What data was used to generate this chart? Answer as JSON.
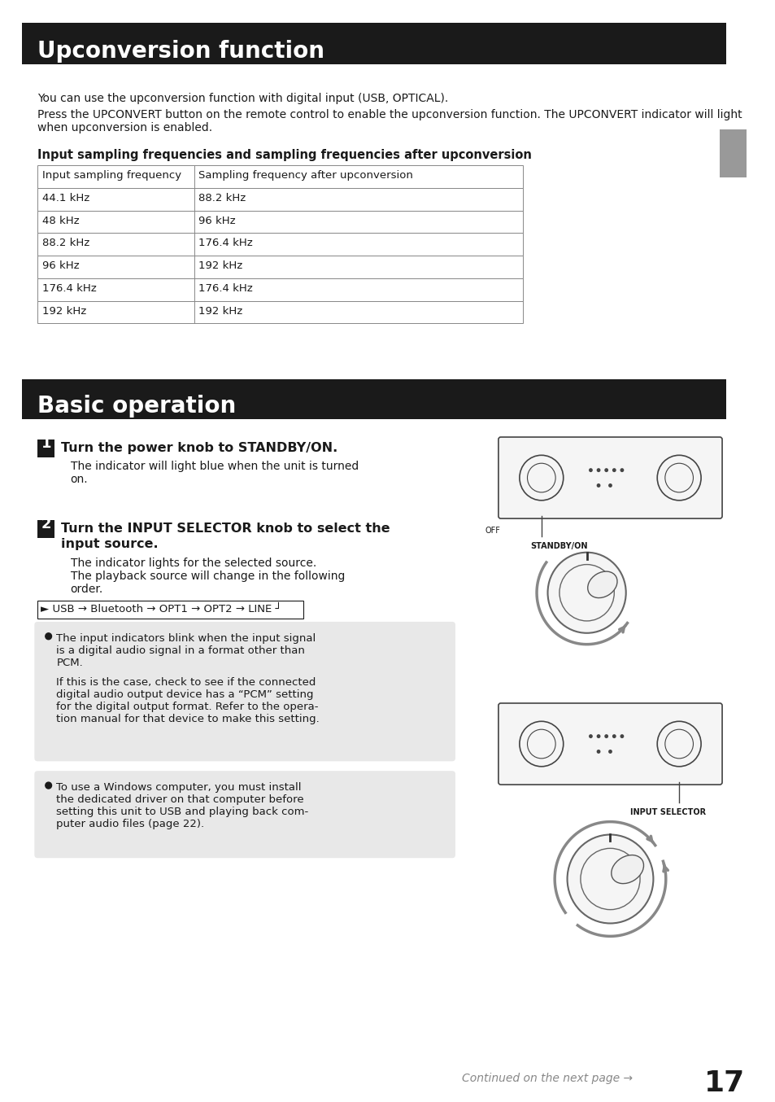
{
  "page_bg": "#ffffff",
  "header1_bg": "#1a1a1a",
  "header1_text": "Upconversion function",
  "header1_text_color": "#ffffff",
  "header2_bg": "#1a1a1a",
  "header2_text": "Basic operation",
  "header2_text_color": "#ffffff",
  "section1_intro1": "You can use the upconversion function with digital input (USB, OPTICAL).",
  "section1_intro2": "Press the UPCONVERT button on the remote control to enable the upconversion function. The UPCONVERT indicator will light when upconversion is enabled.",
  "table_subtitle": "Input sampling frequencies and sampling frequencies after upconversion",
  "table_col1_header": "Input sampling frequency",
  "table_col2_header": "Sampling frequency after upconversion",
  "table_rows": [
    [
      "44.1 kHz",
      "88.2 kHz"
    ],
    [
      "48 kHz",
      "96 kHz"
    ],
    [
      "88.2 kHz",
      "176.4 kHz"
    ],
    [
      "96 kHz",
      "192 kHz"
    ],
    [
      "176.4 kHz",
      "176.4 kHz"
    ],
    [
      "192 kHz",
      "192 kHz"
    ]
  ],
  "step1_num": "1",
  "step1_title": "Turn the power knob to STANDBY/ON.",
  "step1_body": "The indicator will light blue when the unit is turned\non.",
  "step2_num": "2",
  "step2_title": "Turn the INPUT SELECTOR knob to select the input source.",
  "step2_body1": "The indicator lights for the selected source.",
  "step2_body2": "The playback source will change in the following\norder.",
  "flow_text": "► USB → Bluetooth → OPT1 → OPT2 → LINE ┘",
  "note1_bullet": "The input indicators blink when the input signal is a digital audio signal in a format other than PCM.\nIf this is the case, check to see if the connected digital audio output device has a “PCM” setting for the digital output format. Refer to the opera-tion manual for that device to make this setting.",
  "note2_bullet": "To use a Windows computer, you must install the dedicated driver on that computer before setting this unit to USB and playing back com-puter audio files (page 22).",
  "footer_text": "Continued on the next page →",
  "page_num": "17",
  "standby_label": "STANDBY/ON",
  "input_selector_label": "INPUT SELECTOR",
  "off_label": "OFF"
}
